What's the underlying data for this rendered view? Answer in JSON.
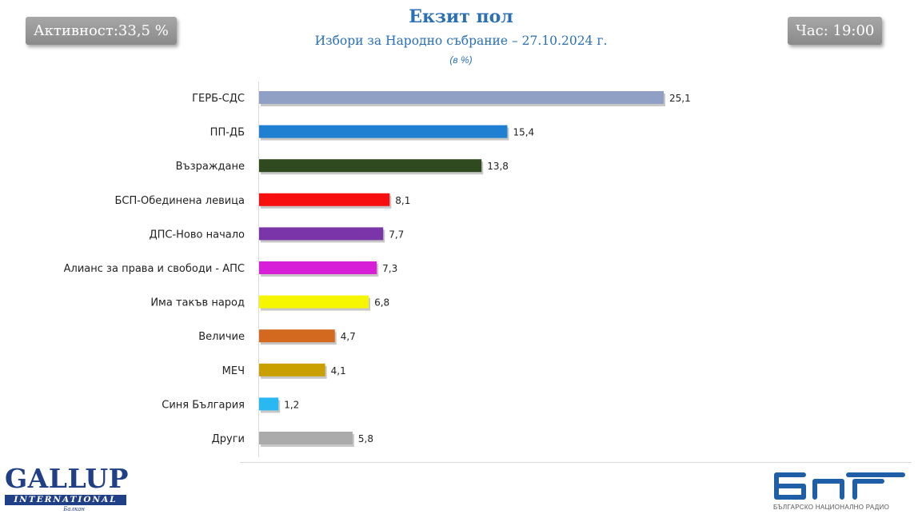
{
  "header": {
    "turnout": "Активност:33,5 %",
    "time": "Час: 19:00",
    "title": "Екзит пол",
    "subtitle": "Избори за Народно събрание – 27.10.2024 г.",
    "unit": "(в %)"
  },
  "logos": {
    "gallup_name": "GALLUP",
    "gallup_bar": "INTERNATIONAL",
    "gallup_sub": "Балкан",
    "bnr_caption": "БЪЛГАРСКО НАЦИОНАЛНО РАДИО"
  },
  "chart_data": {
    "type": "bar",
    "orientation": "horizontal",
    "title": "Екзит пол",
    "subtitle": "Избори за Народно събрание – 27.10.2024 г.",
    "unit": "(в %)",
    "categories": [
      "ГЕРБ-СДС",
      "ПП-ДБ",
      "Възраждане",
      "БСП-Обединена левица",
      "ДПС-Ново начало",
      "Алианс за права и свободи - АПС",
      "Има такъв народ",
      "Величие",
      "МЕЧ",
      "Синя България",
      "Други"
    ],
    "values": [
      25.1,
      15.4,
      13.8,
      8.1,
      7.7,
      7.3,
      6.8,
      4.7,
      4.1,
      1.2,
      5.8
    ],
    "value_labels": [
      "25,1",
      "15,4",
      "13,8",
      "8,1",
      "7,7",
      "7,3",
      "6,8",
      "4,7",
      "4,1",
      "1,2",
      "5,8"
    ],
    "colors": [
      "#8fa0c4",
      "#1f7fd0",
      "#2f4a1e",
      "#f70f0f",
      "#7a35a8",
      "#d81fd8",
      "#f6f600",
      "#d2691e",
      "#c9a000",
      "#2ab8f2",
      "#ababab"
    ],
    "xlim": [
      0,
      25.1
    ],
    "grid": false,
    "legend": "none"
  }
}
